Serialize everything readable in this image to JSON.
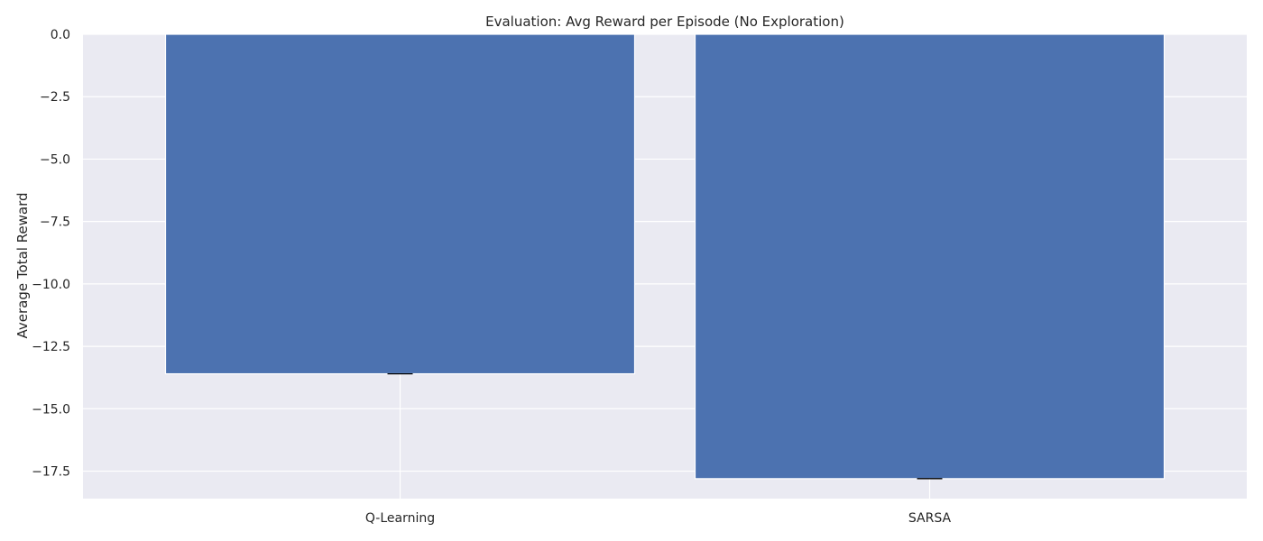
{
  "chart_data": {
    "type": "bar",
    "title": "Evaluation: Avg Reward per Episode (No Exploration)",
    "xlabel": "",
    "ylabel": "Average Total Reward",
    "categories": [
      "Q-Learning",
      "SARSA"
    ],
    "values": [
      -13.6,
      -17.8
    ],
    "errors": [
      0.0,
      0.0
    ],
    "ylim": [
      -18.6,
      0.0
    ],
    "yticks": [
      0.0,
      -2.5,
      -5.0,
      -7.5,
      -10.0,
      -12.5,
      -15.0,
      -17.5
    ],
    "ytick_labels": [
      "0.0",
      "−2.5",
      "−5.0",
      "−7.5",
      "−10.0",
      "−12.5",
      "−15.0",
      "−17.5"
    ],
    "grid": true,
    "colors": {
      "bar": "#4c72b0",
      "plot_background": "#eaeaf2",
      "grid": "#ffffff",
      "error_bar": "#000000",
      "text": "#262626"
    }
  }
}
